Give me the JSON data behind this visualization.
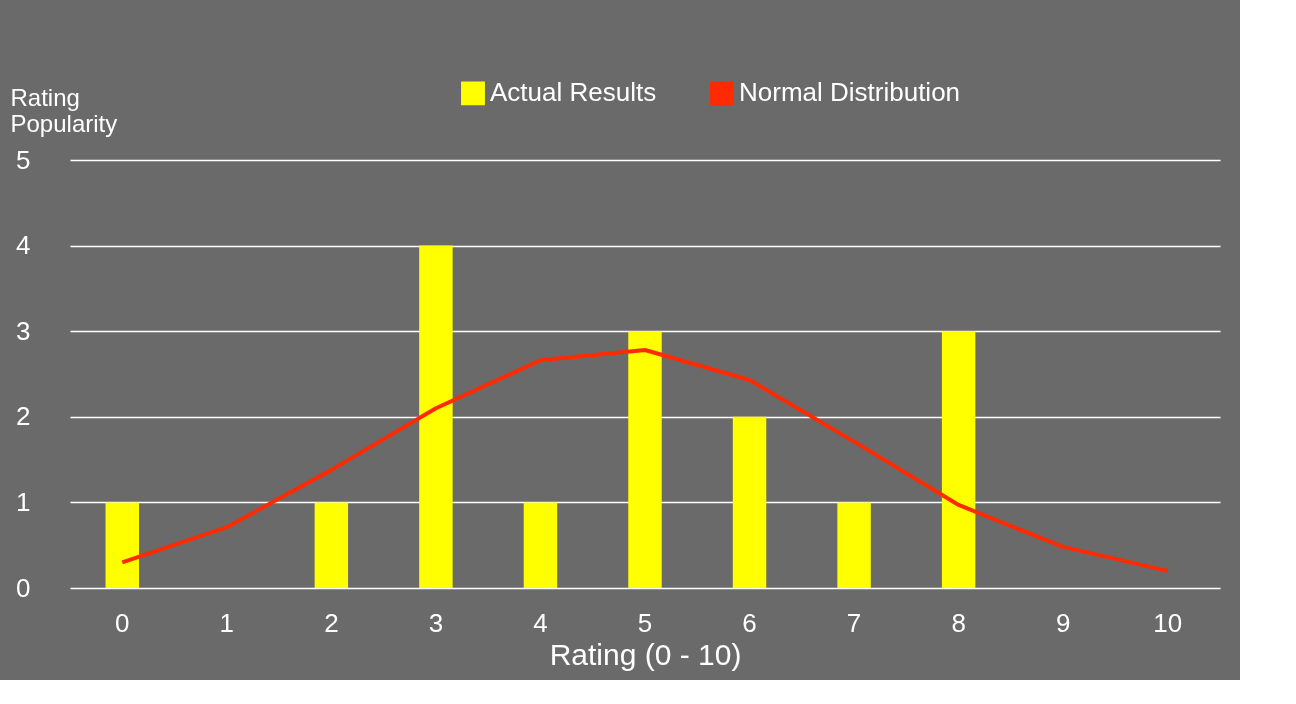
{
  "chart_data": {
    "type": "bar",
    "xlabel": "Rating (0 - 10)",
    "ylabel": "Rating\nPopularity",
    "categories": [
      "0",
      "1",
      "2",
      "3",
      "4",
      "5",
      "6",
      "7",
      "8",
      "9",
      "10"
    ],
    "series": [
      {
        "name": "Actual Results",
        "color": "#ffff00",
        "values": [
          1,
          0,
          1,
          4,
          1,
          3,
          2,
          1,
          3,
          0,
          0
        ]
      },
      {
        "name": "Normal Distribution",
        "type": "line",
        "color": "#ff2a00",
        "values": [
          0.3,
          0.71,
          1.38,
          2.1,
          2.66,
          2.78,
          2.43,
          1.71,
          0.97,
          0.48,
          0.2
        ]
      }
    ],
    "ylim": [
      0,
      5
    ],
    "yticks": [
      0,
      1,
      2,
      3,
      4,
      5
    ],
    "grid": "y",
    "legend": "top right",
    "marker": "none",
    "line_style": "solid"
  }
}
